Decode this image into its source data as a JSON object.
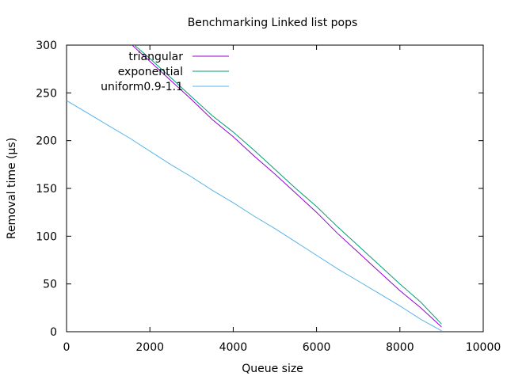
{
  "chart_data": {
    "type": "line",
    "title": "Benchmarking Linked list pops",
    "xlabel": "Queue size",
    "ylabel": "Removal time (µs)",
    "xlim": [
      0,
      10000
    ],
    "ylim": [
      0,
      300
    ],
    "xticks": [
      0,
      2000,
      4000,
      6000,
      8000,
      10000
    ],
    "yticks": [
      0,
      50,
      100,
      150,
      200,
      250,
      300
    ],
    "grid": false,
    "legend_position": "top-left",
    "series": [
      {
        "name": "triangular",
        "color": "#9400d3",
        "x": [
          1500,
          2000,
          2500,
          3000,
          3500,
          4000,
          4500,
          5000,
          5500,
          6000,
          6500,
          7000,
          7500,
          8000,
          8500,
          9000
        ],
        "y": [
          303,
          283,
          263,
          243,
          222,
          204,
          184,
          165,
          145,
          125,
          103,
          83,
          63,
          43,
          25,
          5
        ]
      },
      {
        "name": "exponential",
        "color": "#009e73",
        "x": [
          1550,
          2000,
          2500,
          3000,
          3500,
          4000,
          4500,
          5000,
          5500,
          6000,
          6500,
          7000,
          7500,
          8000,
          8500,
          9000
        ],
        "y": [
          303,
          286,
          266,
          246,
          226,
          209,
          190,
          170,
          150,
          131,
          110,
          90,
          70,
          50,
          31,
          8
        ]
      },
      {
        "name": "uniform0.9-1.1",
        "color": "#56b4e9",
        "x": [
          0,
          500,
          1000,
          1500,
          2000,
          2500,
          3000,
          3500,
          4000,
          4500,
          5000,
          5500,
          6000,
          6500,
          7000,
          7500,
          8000,
          8500,
          9000
        ],
        "y": [
          242,
          229,
          216,
          203,
          189,
          175,
          162,
          148,
          135,
          121,
          108,
          94,
          80,
          66,
          53,
          40,
          27,
          13,
          1
        ]
      }
    ]
  }
}
